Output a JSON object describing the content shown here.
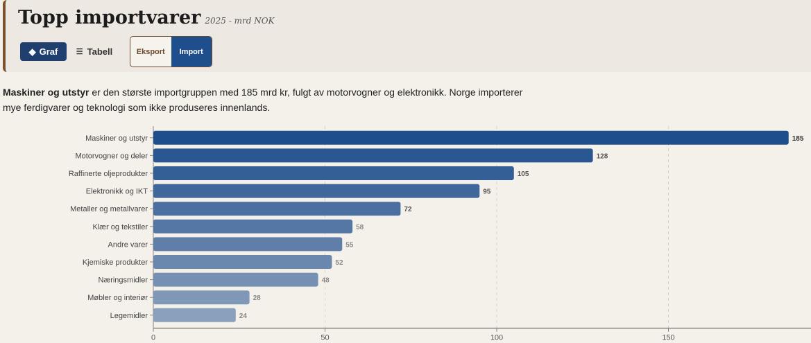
{
  "header": {
    "title": "Topp importvarer",
    "subtitle": "2025 - mrd NOK",
    "view_graf": "Graf",
    "view_tabell": "Tabell",
    "toggle_export": "Eksport",
    "toggle_import": "Import",
    "active_view": "Graf",
    "active_toggle": "Import"
  },
  "description": {
    "bold": "Maskiner og utstyr",
    "rest": " er den største importgruppen med 185 mrd kr, fulgt av motorvogner og elektronikk. Norge importerer mye ferdigvarer og teknologi som ikke produseres innenlands."
  },
  "colors": {
    "accent_dark": "#1f3f6e",
    "import_active": "#1f4e8c",
    "bar_top": "#1f4e8c",
    "bar_light": "#8aa0bd"
  },
  "chart_data": {
    "type": "bar",
    "orientation": "horizontal",
    "categories": [
      "Maskiner og utstyr",
      "Motorvogner og deler",
      "Raffinerte oljeprodukter",
      "Elektronikk og IKT",
      "Metaller og metallvarer",
      "Klær og tekstiler",
      "Andre varer",
      "Kjemiske produkter",
      "Næringsmidler",
      "Møbler og interiør",
      "Legemidler"
    ],
    "values": [
      185,
      128,
      105,
      95,
      72,
      58,
      55,
      52,
      48,
      28,
      24
    ],
    "xlim": [
      0,
      190
    ],
    "xticks": [
      0,
      50,
      100,
      150
    ],
    "grid": true
  }
}
